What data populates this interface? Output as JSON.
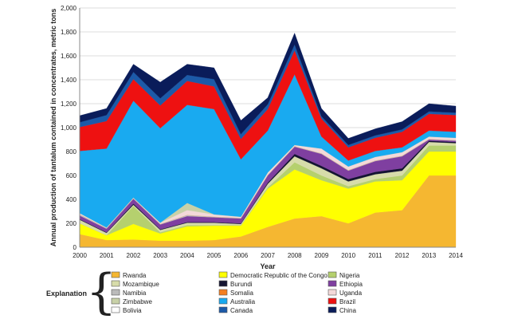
{
  "chart_data": {
    "type": "area",
    "stacked": true,
    "title": "",
    "xlabel": "Year",
    "ylabel": "Annual production of tantalum contained in concentrates, metric tons",
    "ylim": [
      0,
      2000
    ],
    "yticks": [
      0,
      200,
      400,
      600,
      800,
      1000,
      1200,
      1400,
      1600,
      1800,
      2000
    ],
    "yticklabels": [
      "0",
      "200",
      "400",
      "600",
      "800",
      "1,000",
      "1,200",
      "1,400",
      "1,600",
      "1,800",
      "2,000"
    ],
    "x": [
      "2000",
      "2001",
      "2002",
      "2003",
      "2004",
      "2005",
      "2006",
      "2007",
      "2008",
      "2009",
      "2010",
      "2011",
      "2012",
      "2013",
      "2014"
    ],
    "legend_title": "Explanation",
    "legend_position": "bottom",
    "series": [
      {
        "name": "Rwanda",
        "color": "#f5b731",
        "values": [
          110,
          60,
          65,
          55,
          55,
          60,
          90,
          170,
          240,
          260,
          200,
          290,
          310,
          600,
          600
        ]
      },
      {
        "name": "Democratic Republic of the Congo",
        "color": "#ffff00",
        "values": [
          90,
          40,
          130,
          60,
          120,
          120,
          90,
          320,
          410,
          300,
          290,
          260,
          250,
          200,
          200
        ]
      },
      {
        "name": "Nigeria",
        "color": "#b5d06e",
        "values": [
          0,
          0,
          150,
          10,
          10,
          5,
          5,
          10,
          60,
          40,
          20,
          20,
          40,
          50,
          50
        ]
      },
      {
        "name": "Mozambique",
        "color": "#d7dcaa",
        "values": [
          30,
          20,
          10,
          20,
          20,
          20,
          10,
          30,
          50,
          60,
          40,
          40,
          40,
          30,
          20
        ]
      },
      {
        "name": "Burundi",
        "color": "#141432",
        "values": [
          5,
          5,
          10,
          5,
          5,
          5,
          5,
          10,
          20,
          20,
          20,
          20,
          20,
          10,
          10
        ]
      },
      {
        "name": "Ethiopia",
        "color": "#7f3fa0",
        "values": [
          30,
          30,
          40,
          40,
          50,
          40,
          40,
          60,
          60,
          100,
          70,
          90,
          100,
          10,
          10
        ]
      },
      {
        "name": "Namibia",
        "color": "#bbbbbb",
        "values": [
          10,
          5,
          5,
          5,
          10,
          5,
          5,
          5,
          5,
          5,
          5,
          5,
          5,
          5,
          5
        ]
      },
      {
        "name": "Somalia",
        "color": "#f57f20",
        "values": [
          0,
          0,
          0,
          0,
          0,
          0,
          0,
          0,
          0,
          0,
          0,
          0,
          0,
          0,
          0
        ]
      },
      {
        "name": "Uganda",
        "color": "#f3d9d9",
        "values": [
          10,
          5,
          5,
          10,
          40,
          20,
          10,
          20,
          10,
          40,
          30,
          30,
          30,
          20,
          20
        ]
      },
      {
        "name": "Zimbabwe",
        "color": "#c8d1a8",
        "values": [
          0,
          0,
          0,
          0,
          60,
          0,
          0,
          0,
          0,
          0,
          0,
          0,
          0,
          0,
          0
        ]
      },
      {
        "name": "Australia",
        "color": "#19aaf0",
        "values": [
          520,
          660,
          810,
          790,
          820,
          880,
          480,
          350,
          590,
          100,
          50,
          50,
          40,
          50,
          50
        ]
      },
      {
        "name": "Brazil",
        "color": "#ee1111",
        "values": [
          200,
          230,
          180,
          190,
          200,
          190,
          170,
          180,
          200,
          150,
          110,
          110,
          130,
          140,
          140
        ]
      },
      {
        "name": "Bolivia",
        "color": "#ffffff",
        "values": [
          0,
          0,
          0,
          0,
          0,
          0,
          0,
          0,
          0,
          0,
          0,
          0,
          0,
          0,
          0
        ]
      },
      {
        "name": "Canada",
        "color": "#1c5aa8",
        "values": [
          40,
          50,
          60,
          60,
          50,
          60,
          40,
          40,
          50,
          20,
          20,
          20,
          20,
          20,
          20
        ]
      },
      {
        "name": "China",
        "color": "#0a1c5a",
        "values": [
          55,
          55,
          65,
          135,
          90,
          95,
          115,
          55,
          95,
          65,
          55,
          55,
          65,
          65,
          55
        ]
      }
    ],
    "legend_columns": [
      [
        "Rwanda",
        "Mozambique",
        "Namibia",
        "Zimbabwe",
        "Bolivia"
      ],
      [
        "Democratic Republic of the Congo",
        "Burundi",
        "Somalia",
        "Australia",
        "Canada"
      ],
      [
        "Nigeria",
        "Ethiopia",
        "Uganda",
        "Brazil",
        "China"
      ]
    ],
    "grid": true
  }
}
